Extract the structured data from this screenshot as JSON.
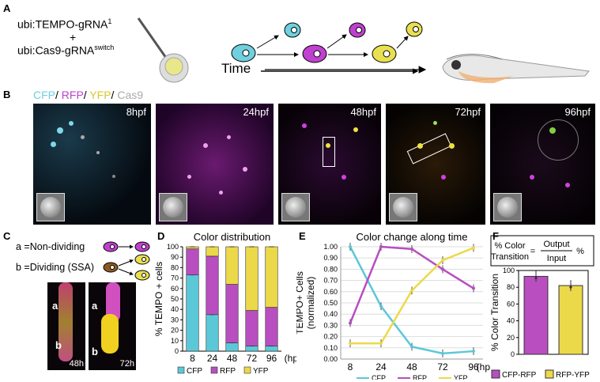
{
  "panels": {
    "A": "A",
    "B": "B",
    "C": "C",
    "D": "D",
    "E": "E",
    "F": "F"
  },
  "panelA": {
    "construct1": "ubi:TEMPO-gRNA",
    "construct1_sup": "1",
    "plus": "+",
    "construct2": "ubi:Cas9-gRNA",
    "construct2_sup": "switch",
    "time_label": "Time"
  },
  "panelB": {
    "channels": [
      {
        "name": "CFP",
        "color": "#6fd0e0",
        "sep": "/ "
      },
      {
        "name": "RFP",
        "color": "#c040d0",
        "sep": "/ "
      },
      {
        "name": "YFP",
        "color": "#e0d040",
        "sep": "/ "
      },
      {
        "name": "Cas9",
        "color": "#aaaaaa",
        "sep": ""
      }
    ],
    "timepoints": [
      "8hpf",
      "24hpf",
      "48hpf",
      "72hpf",
      "96hpf"
    ]
  },
  "panelC": {
    "a_label": "a =",
    "a_text": "Non-dividing",
    "b_label": "b =",
    "b_text": "Dividing (SSA)",
    "img1_a": "a",
    "img1_b": "b",
    "img1_time": "48h",
    "img2_a": "a",
    "img2_b": "b",
    "img2_time": "72h"
  },
  "colors": {
    "CFP": "#5bc8d8",
    "RFP": "#b84ec0",
    "YFP": "#ecd94a"
  },
  "chart_data": [
    {
      "type": "bar",
      "title": "Color distribution",
      "ylabel": "% TEMPO + cells",
      "xlabel": "(hpf)",
      "categories": [
        "8",
        "24",
        "48",
        "72",
        "96"
      ],
      "ylim": [
        0,
        100
      ],
      "yticks": [
        "0",
        "10",
        "20",
        "30",
        "40",
        "50",
        "60",
        "70",
        "80",
        "90",
        "100"
      ],
      "stacked": true,
      "series": [
        {
          "name": "CFP",
          "values": [
            73,
            35,
            8,
            5,
            5
          ]
        },
        {
          "name": "RFP",
          "values": [
            25,
            56,
            56,
            34,
            37
          ]
        },
        {
          "name": "YFP",
          "values": [
            2,
            9,
            36,
            61,
            58
          ]
        }
      ],
      "legend": [
        "CFP",
        "RFP",
        "YFP"
      ]
    },
    {
      "type": "line",
      "title": "Color change along time",
      "ylabel": "TEMPO+ Cells",
      "ylabel2": "(normalized)",
      "xlabel": "(hpf)",
      "x": [
        "8",
        "24",
        "48",
        "72",
        "96"
      ],
      "ylim": [
        0,
        1
      ],
      "yticks": [
        "0.00",
        "0.10",
        "0.20",
        "0.30",
        "0.40",
        "0.50",
        "0.60",
        "0.70",
        "0.80",
        "0.90",
        "1.00"
      ],
      "series": [
        {
          "name": "CFP",
          "values": [
            1.0,
            0.47,
            0.11,
            0.05,
            0.07
          ]
        },
        {
          "name": "RFP",
          "values": [
            0.32,
            1.0,
            0.98,
            0.8,
            0.63
          ]
        },
        {
          "name": "YFP",
          "values": [
            0.14,
            0.14,
            0.61,
            0.88,
            0.99
          ]
        }
      ],
      "legend": [
        "CFP",
        "RFP",
        "YFP"
      ]
    },
    {
      "type": "bar",
      "ylabel": "% Color Transition",
      "categories": [
        "CFP-RFP",
        "RFP-YFP"
      ],
      "values": [
        93,
        82
      ],
      "ylim": [
        0,
        100
      ],
      "yticks": [
        "0",
        "20",
        "40",
        "60",
        "80",
        "100"
      ],
      "formula_left1": "% Color",
      "formula_left2": "Transition",
      "formula_eq": "=",
      "formula_num": "Output",
      "formula_den": "Input",
      "formula_pct": "%",
      "legend": [
        "CFP-RFP",
        "RFP-YFP"
      ]
    }
  ]
}
